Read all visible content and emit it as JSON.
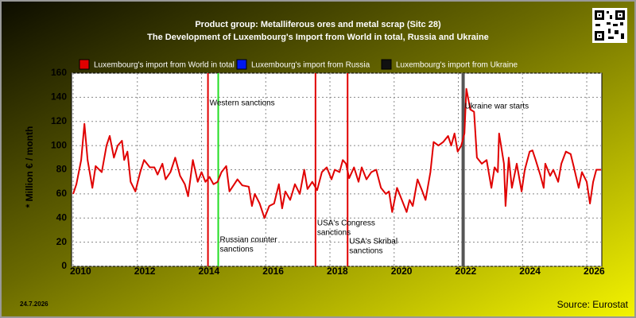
{
  "chart_data": {
    "type": "line",
    "title": [
      "Product group: Metalliferous ores and metal scrap (Sitc 28)",
      "The Development of Luxembourg's Import from World in total, Russia and Ukraine"
    ],
    "y_label": "* Million € / month",
    "date": "24.7.2026",
    "source": "Source: Eurostat",
    "xlim": [
      2009.95,
      2026.47
    ],
    "xticks": [
      2010,
      2012,
      2014,
      2016,
      2018,
      2020,
      2022,
      2024,
      2026
    ],
    "ylim": [
      0,
      160
    ],
    "yticks": [
      0,
      20,
      40,
      60,
      80,
      100,
      120,
      140,
      160
    ],
    "grid": true,
    "x": [
      2010.0,
      2010.1,
      2010.25,
      2010.35,
      2010.45,
      2010.6,
      2010.7,
      2010.89,
      2011.04,
      2011.14,
      2011.27,
      2011.39,
      2011.52,
      2011.59,
      2011.69,
      2011.79,
      2011.94,
      2012.09,
      2012.21,
      2012.39,
      2012.53,
      2012.63,
      2012.78,
      2012.88,
      2013.03,
      2013.18,
      2013.33,
      2013.48,
      2013.58,
      2013.73,
      2013.88,
      2014.0,
      2014.12,
      2014.25,
      2014.37,
      2014.5,
      2014.62,
      2014.77,
      2014.87,
      2015.02,
      2015.12,
      2015.27,
      2015.47,
      2015.57,
      2015.66,
      2015.81,
      2015.96,
      2016.11,
      2016.26,
      2016.41,
      2016.51,
      2016.61,
      2016.76,
      2016.91,
      2017.06,
      2017.2,
      2017.3,
      2017.45,
      2017.6,
      2017.75,
      2017.9,
      2018.05,
      2018.15,
      2018.3,
      2018.4,
      2018.5,
      2018.6,
      2018.75,
      2018.89,
      2018.99,
      2019.14,
      2019.29,
      2019.44,
      2019.59,
      2019.74,
      2019.84,
      2019.94,
      2020.09,
      2020.24,
      2020.39,
      2020.48,
      2020.58,
      2020.73,
      2020.88,
      2020.98,
      2021.13,
      2021.23,
      2021.38,
      2021.53,
      2021.68,
      2021.78,
      2021.88,
      2021.98,
      2022.09,
      2022.19,
      2022.25,
      2022.37,
      2022.49,
      2022.58,
      2022.73,
      2022.88,
      2023.03,
      2023.13,
      2023.23,
      2023.27,
      2023.42,
      2023.47,
      2023.57,
      2023.67,
      2023.82,
      2023.97,
      2024.07,
      2024.22,
      2024.31,
      2024.41,
      2024.56,
      2024.66,
      2024.71,
      2024.86,
      2024.96,
      2025.11,
      2025.21,
      2025.35,
      2025.5,
      2025.6,
      2025.75,
      2025.85,
      2026.0,
      2026.1,
      2026.2,
      2026.3,
      2026.45
    ],
    "series": [
      {
        "name": "Luxembourg's import from World in total",
        "color": "#e00000",
        "values": [
          60,
          68,
          88,
          118,
          88,
          65,
          83,
          78,
          100,
          108,
          90,
          100,
          104,
          88,
          95,
          70,
          62,
          78,
          88,
          82,
          82,
          76,
          85,
          72,
          78,
          90,
          75,
          68,
          58,
          88,
          70,
          78,
          70,
          74,
          68,
          70,
          78,
          83,
          62,
          68,
          72,
          67,
          66,
          50,
          60,
          52,
          40,
          50,
          52,
          68,
          48,
          62,
          55,
          68,
          60,
          80,
          64,
          70,
          63,
          78,
          82,
          72,
          80,
          78,
          88,
          85,
          73,
          82,
          70,
          82,
          72,
          78,
          80,
          65,
          60,
          62,
          45,
          65,
          55,
          45,
          55,
          50,
          72,
          62,
          55,
          78,
          103,
          100,
          103,
          108,
          100,
          110,
          95,
          100,
          110,
          147,
          130,
          128,
          90,
          85,
          88,
          65,
          82,
          78,
          110,
          85,
          50,
          90,
          65,
          85,
          62,
          80,
          95,
          96,
          88,
          75,
          65,
          85,
          75,
          80,
          70,
          85,
          95,
          93,
          82,
          65,
          78,
          70,
          52,
          70,
          80,
          80
        ]
      },
      {
        "name": "Luxembourg's import from Russia",
        "color": "#0018f0",
        "values": [
          null,
          null,
          null,
          null,
          null,
          null,
          null,
          null,
          null,
          null,
          null,
          null,
          null,
          null,
          null,
          null,
          null,
          null,
          null,
          null,
          null,
          null,
          null,
          null,
          null,
          null,
          null,
          null,
          null,
          null,
          null,
          null,
          null,
          null,
          null,
          null,
          null,
          null,
          null,
          null,
          null,
          null,
          null,
          null,
          null,
          null,
          null,
          null,
          null,
          null,
          null,
          null,
          null,
          null,
          null,
          null,
          null,
          null,
          null,
          null,
          null,
          null,
          null,
          null,
          null,
          null,
          null,
          null,
          null,
          null,
          null,
          null,
          null,
          null,
          null,
          null,
          null,
          null,
          null,
          null,
          null,
          null,
          null,
          null,
          null,
          null,
          null,
          null,
          null,
          null,
          null,
          null,
          null,
          null,
          null,
          null,
          null,
          null,
          null,
          null,
          null,
          null,
          null,
          null,
          null,
          null,
          null,
          null,
          null,
          null,
          null,
          null,
          null,
          null,
          null,
          null,
          null,
          null,
          null,
          null,
          null,
          null,
          null,
          null,
          null,
          null,
          null,
          null,
          null,
          null,
          null,
          null
        ]
      },
      {
        "name": "Luxembourg's import from Ukraine",
        "color": "#111111",
        "values": [
          null,
          null,
          null,
          null,
          null,
          null,
          null,
          null,
          null,
          null,
          null,
          null,
          null,
          null,
          null,
          null,
          null,
          null,
          null,
          null,
          null,
          null,
          null,
          null,
          null,
          null,
          null,
          null,
          null,
          null,
          null,
          null,
          null,
          null,
          null,
          null,
          null,
          null,
          null,
          null,
          null,
          null,
          null,
          null,
          null,
          null,
          null,
          null,
          null,
          null,
          null,
          null,
          null,
          null,
          null,
          null,
          null,
          null,
          null,
          null,
          null,
          null,
          null,
          null,
          null,
          null,
          null,
          null,
          null,
          null,
          null,
          null,
          null,
          null,
          null,
          null,
          null,
          null,
          null,
          null,
          null,
          null,
          null,
          null,
          null,
          null,
          null,
          null,
          null,
          null,
          null,
          null,
          null,
          null,
          null,
          null,
          null,
          null,
          null,
          null,
          null,
          null,
          null,
          null,
          null,
          null,
          null,
          null,
          null,
          null,
          null,
          null,
          null,
          null,
          null,
          null,
          null,
          null,
          null,
          null,
          null,
          null,
          null,
          null,
          null,
          null,
          null,
          null,
          null,
          null,
          null,
          null
        ]
      }
    ],
    "annotations": [
      {
        "x": 2014.2,
        "color": "#e00000",
        "text": [
          "Western sanctions"
        ]
      },
      {
        "x": 2014.52,
        "color": "#22dd22",
        "text": [
          "Russian counter",
          "sanctions"
        ]
      },
      {
        "x": 2017.55,
        "color": "#e00000",
        "text": [
          "USA's Congress",
          "sanctions"
        ]
      },
      {
        "x": 2018.55,
        "color": "#e00000",
        "text": [
          "USA's Skribal",
          "sanctions"
        ]
      },
      {
        "x": 2022.15,
        "color": "#555555",
        "text": [
          "Ukraine war starts"
        ]
      }
    ]
  }
}
